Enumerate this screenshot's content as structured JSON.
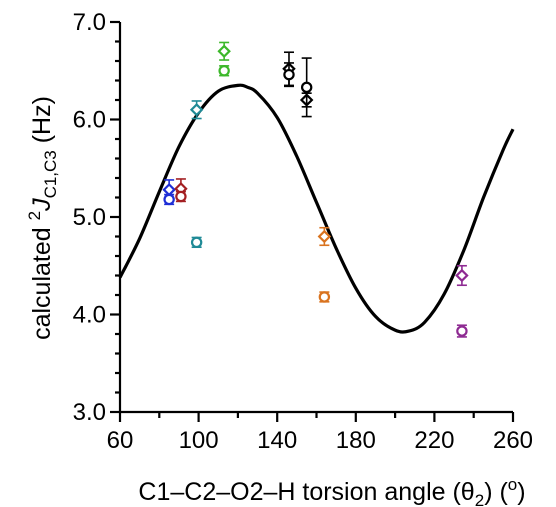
{
  "chart_data": {
    "type": "scatter",
    "title": "",
    "xlabel": {
      "pre": "C1–C2–O2–H torsion angle (θ",
      "sub": "2",
      "mid": ") (",
      "sup": "o",
      "post": ")"
    },
    "ylabel": {
      "pre": "calculated ",
      "sup": "2",
      "italic": "J",
      "sub": "C1,C3",
      "post": " (Hz)"
    },
    "xlim": [
      60,
      260
    ],
    "ylim": [
      3.0,
      7.0
    ],
    "x_ticks": [
      "60",
      "100",
      "140",
      "180",
      "220",
      "260"
    ],
    "x_tick_values": [
      60,
      100,
      140,
      180,
      220,
      260
    ],
    "y_ticks": [
      "3.0",
      "4.0",
      "5.0",
      "6.0",
      "7.0"
    ],
    "y_tick_values": [
      3.0,
      4.0,
      5.0,
      6.0,
      7.0
    ],
    "curve": {
      "description": "fitted Karplus-type curve",
      "points": [
        [
          60,
          4.38
        ],
        [
          70,
          4.78
        ],
        [
          80,
          5.26
        ],
        [
          90,
          5.72
        ],
        [
          100,
          6.07
        ],
        [
          110,
          6.29
        ],
        [
          120,
          6.35
        ],
        [
          125,
          6.33
        ],
        [
          130,
          6.27
        ],
        [
          140,
          6.02
        ],
        [
          150,
          5.62
        ],
        [
          160,
          5.15
        ],
        [
          170,
          4.68
        ],
        [
          180,
          4.27
        ],
        [
          190,
          3.98
        ],
        [
          200,
          3.84
        ],
        [
          207,
          3.83
        ],
        [
          215,
          3.92
        ],
        [
          225,
          4.21
        ],
        [
          235,
          4.66
        ],
        [
          245,
          5.2
        ],
        [
          255,
          5.69
        ],
        [
          260,
          5.9
        ]
      ]
    },
    "series": [
      {
        "color": "#1f2fd6",
        "points": [
          {
            "x": 85,
            "y": 5.28,
            "err": 0.1,
            "marker": "diamond"
          },
          {
            "x": 85,
            "y": 5.18,
            "err": 0.05,
            "marker": "circle"
          }
        ]
      },
      {
        "color": "#a31f22",
        "points": [
          {
            "x": 91,
            "y": 5.29,
            "err": 0.1,
            "marker": "diamond"
          },
          {
            "x": 91,
            "y": 5.21,
            "err": 0.05,
            "marker": "circle"
          }
        ]
      },
      {
        "color": "#1f8a96",
        "points": [
          {
            "x": 99,
            "y": 6.1,
            "err": 0.09,
            "marker": "diamond"
          },
          {
            "x": 99,
            "y": 4.74,
            "err": 0.05,
            "marker": "circle"
          }
        ]
      },
      {
        "color": "#3cb82a",
        "points": [
          {
            "x": 113,
            "y": 6.7,
            "err": 0.09,
            "marker": "diamond"
          },
          {
            "x": 113,
            "y": 6.5,
            "err": 0.05,
            "marker": "circle"
          }
        ]
      },
      {
        "color": "#000000",
        "points": [
          {
            "x": 146,
            "y": 6.52,
            "err": 0.17,
            "marker": "diamond"
          },
          {
            "x": 146,
            "y": 6.46,
            "err": 0.12,
            "marker": "circle"
          },
          {
            "x": 155,
            "y": 6.2,
            "err": 0.07,
            "marker": "diamond"
          },
          {
            "x": 155,
            "y": 6.33,
            "err": 0.3,
            "marker": "circle"
          }
        ]
      },
      {
        "color": "#d9731f",
        "points": [
          {
            "x": 164,
            "y": 4.8,
            "err": 0.09,
            "marker": "diamond"
          },
          {
            "x": 164,
            "y": 4.18,
            "err": 0.05,
            "marker": "circle"
          }
        ]
      },
      {
        "color": "#8e2a92",
        "points": [
          {
            "x": 234,
            "y": 4.4,
            "err": 0.1,
            "marker": "diamond"
          },
          {
            "x": 234,
            "y": 3.83,
            "err": 0.06,
            "marker": "circle"
          }
        ]
      }
    ]
  }
}
